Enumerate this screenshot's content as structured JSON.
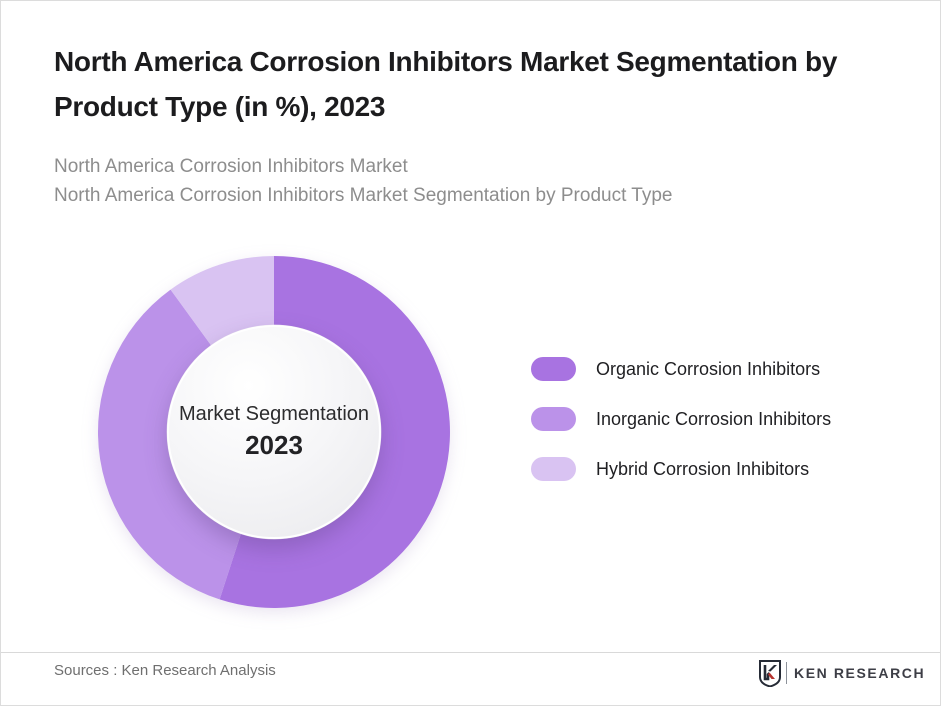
{
  "page": {
    "title": "North America Corrosion Inhibitors Market Segmentation by Product Type (in %), 2023",
    "subtitles": {
      "line1": "North America Corrosion Inhibitors Market",
      "line2": "North America Corrosion Inhibitors Market Segmentation by Product Type"
    },
    "footer": {
      "sources": "Sources : Ken Research Analysis",
      "brand": "KEN RESEARCH"
    }
  },
  "chart_data": {
    "type": "pie",
    "subtype": "donut",
    "title": "North America Corrosion Inhibitors Market Segmentation by Product Type (in %), 2023",
    "categories": [
      "Organic Corrosion Inhibitors",
      "Inorganic Corrosion Inhibitors",
      "Hybrid Corrosion Inhibitors"
    ],
    "values": [
      55,
      35,
      10
    ],
    "unit": "%",
    "colors": [
      "#a873e1",
      "#bb92e9",
      "#d9c3f2"
    ],
    "start_angle_deg": 0,
    "direction": "clockwise",
    "inner_radius_ratio": 0.61,
    "legend_position": "right",
    "center_label_line1": "Market Segmentation",
    "center_label_line2": "2023"
  }
}
